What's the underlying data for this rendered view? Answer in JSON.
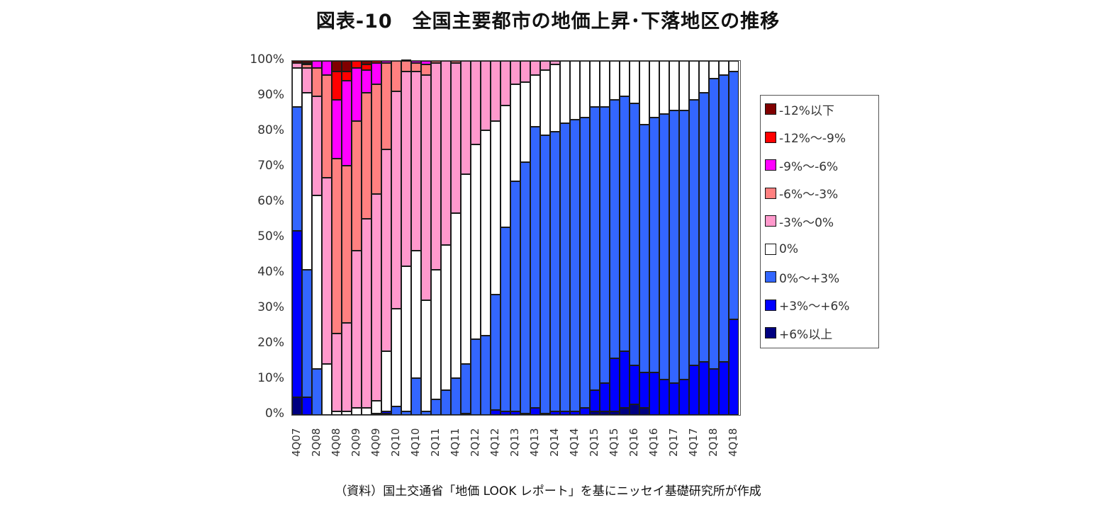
{
  "title": "図表-10　全国主要都市の地価上昇･下落地区の推移",
  "source": "（資料）国土交通省「地価 LOOK レポート」を基にニッセイ基礎研究所が作成",
  "chart_data": {
    "type": "bar",
    "stacked": true,
    "title": "図表-10　全国主要都市の地価上昇･下落地区の推移",
    "xlabel": "",
    "ylabel": "",
    "ylim": [
      0,
      100
    ],
    "yticks": [
      "0%",
      "10%",
      "20%",
      "30%",
      "40%",
      "50%",
      "60%",
      "70%",
      "80%",
      "90%",
      "100%"
    ],
    "x_tick_labels_shown": [
      "4Q07",
      "2Q08",
      "4Q08",
      "2Q09",
      "4Q09",
      "2Q10",
      "4Q10",
      "2Q11",
      "4Q11",
      "2Q12",
      "4Q12",
      "2Q13",
      "4Q13",
      "2Q14",
      "4Q14",
      "2Q15",
      "4Q15",
      "2Q16",
      "4Q16",
      "2Q17",
      "4Q17",
      "2Q18",
      "4Q18"
    ],
    "categories": [
      "4Q07",
      "1Q08",
      "2Q08",
      "3Q08",
      "4Q08",
      "1Q09",
      "2Q09",
      "3Q09",
      "4Q09",
      "1Q10",
      "2Q10",
      "3Q10",
      "4Q10",
      "1Q11",
      "2Q11",
      "3Q11",
      "4Q11",
      "1Q12",
      "2Q12",
      "3Q12",
      "4Q12",
      "1Q13",
      "2Q13",
      "3Q13",
      "4Q13",
      "1Q14",
      "2Q14",
      "3Q14",
      "4Q14",
      "1Q15",
      "2Q15",
      "3Q15",
      "4Q15",
      "1Q16",
      "2Q16",
      "3Q16",
      "4Q16",
      "1Q17",
      "2Q17",
      "3Q17",
      "4Q17",
      "1Q18",
      "2Q18",
      "3Q18",
      "4Q18"
    ],
    "legend_position": "right",
    "grid": false,
    "series": [
      {
        "name": "+6%以上",
        "color": "#000080",
        "values": [
          5,
          0,
          0,
          0,
          0,
          0,
          0,
          0,
          0,
          0.5,
          0,
          0,
          0,
          0,
          0,
          0,
          0,
          0.5,
          0,
          0,
          0,
          0,
          0,
          0,
          0,
          0,
          0,
          0,
          0,
          0,
          1,
          1,
          1,
          2,
          3,
          2,
          0,
          0,
          0,
          0,
          0,
          0,
          0,
          0,
          0
        ]
      },
      {
        "name": "+3%～+6%",
        "color": "#0000FF",
        "values": [
          47,
          5,
          0,
          0,
          0,
          0,
          0,
          0,
          0.5,
          0.5,
          0,
          0,
          0,
          0,
          0,
          0,
          0,
          0,
          0,
          0,
          1.5,
          1,
          1,
          0.5,
          2,
          0.5,
          1,
          1,
          1,
          2,
          6,
          8,
          15,
          16,
          11,
          10,
          12,
          10,
          9,
          10,
          14,
          15,
          13,
          15,
          27
        ]
      },
      {
        "name": "0%～+3%",
        "color": "#3366FF",
        "values": [
          35,
          36,
          13,
          0,
          0,
          0,
          0,
          0,
          0,
          0,
          2.5,
          1,
          10.5,
          1,
          4.5,
          7,
          10.5,
          14,
          21.5,
          22.5,
          32.5,
          52,
          65,
          71,
          79.5,
          78.5,
          79,
          81.5,
          82.5,
          82,
          80,
          78,
          73,
          72,
          74,
          70,
          72,
          75,
          77,
          76,
          75,
          76,
          82,
          81,
          70
        ]
      },
      {
        "name": "0%",
        "color": "#FFFFFF",
        "values": [
          11,
          50,
          49,
          14.5,
          1,
          1,
          2,
          2,
          3.5,
          17,
          27.5,
          41,
          36,
          31.5,
          36.5,
          41,
          46.5,
          53.5,
          55,
          58,
          49,
          34.5,
          27.5,
          22.5,
          14.5,
          18.5,
          19,
          17.5,
          16.5,
          16,
          13,
          13,
          11,
          10,
          12,
          18,
          16,
          15,
          14,
          14,
          11,
          9,
          5,
          4,
          3
        ]
      },
      {
        "name": "-3%～0%",
        "color": "#FF99CC",
        "values": [
          1.5,
          7,
          28,
          52.5,
          22,
          25,
          44.5,
          53.5,
          58.5,
          57,
          61.5,
          55,
          50.5,
          63.5,
          58.5,
          52,
          42.5,
          32,
          23.5,
          19.5,
          17,
          12.5,
          6.5,
          6,
          4,
          2.5,
          1,
          0,
          0,
          0,
          0,
          0,
          0,
          0,
          0,
          0,
          0,
          0,
          0,
          0,
          0,
          0,
          0,
          0,
          0
        ]
      },
      {
        "name": "-6%～-3%",
        "color": "#FF8080",
        "values": [
          0,
          1,
          8,
          29,
          49.5,
          44.5,
          36.5,
          35.5,
          31,
          24.5,
          8.5,
          3,
          2.5,
          3,
          0.5,
          0,
          0.5,
          0,
          0,
          0,
          0,
          0,
          0,
          0,
          0,
          0,
          0,
          0,
          0,
          0,
          0,
          0,
          0,
          0,
          0,
          0,
          0,
          0,
          0,
          0,
          0,
          0,
          0,
          0,
          0
        ]
      },
      {
        "name": "-9%～-6%",
        "color": "#FF00FF",
        "values": [
          0,
          0.5,
          2,
          4,
          16.5,
          24,
          15,
          6.5,
          6,
          0.5,
          0,
          0.5,
          0.5,
          1,
          0,
          0,
          0,
          0,
          0,
          0,
          0,
          0,
          0,
          0,
          0,
          0,
          0,
          0,
          0,
          0,
          0,
          0,
          0,
          0,
          0,
          0,
          0,
          0,
          0,
          0,
          0,
          0,
          0,
          0,
          0
        ]
      },
      {
        "name": "-12%～-9%",
        "color": "#FF0000",
        "values": [
          0,
          0,
          0,
          0,
          8,
          2.5,
          2,
          1.5,
          0.5,
          0,
          0,
          0,
          0,
          0,
          0,
          0,
          0,
          0,
          0,
          0,
          0,
          0,
          0,
          0,
          0,
          0,
          0,
          0,
          0,
          0,
          0,
          0,
          0,
          0,
          0,
          0,
          0,
          0,
          0,
          0,
          0,
          0,
          0,
          0,
          0
        ]
      },
      {
        "name": "-12%以下",
        "color": "#800000",
        "values": [
          0.5,
          0.5,
          0,
          0,
          3,
          3,
          0,
          1,
          0,
          0,
          0,
          0,
          0,
          0,
          0,
          0,
          0,
          0,
          0,
          0,
          0,
          0,
          0,
          0,
          0,
          0,
          0,
          0,
          0,
          0,
          0,
          0,
          0,
          0,
          0,
          0,
          0,
          0,
          0,
          0,
          0,
          0,
          0,
          0,
          0
        ]
      }
    ]
  },
  "legend": {
    "items": [
      {
        "label": "-12%以下",
        "color": "#800000"
      },
      {
        "label": "-12%～-9%",
        "color": "#FF0000"
      },
      {
        "label": "-9%～-6%",
        "color": "#FF00FF"
      },
      {
        "label": "-6%～-3%",
        "color": "#FF8080"
      },
      {
        "label": "-3%～0%",
        "color": "#FF99CC"
      },
      {
        "label": "0%",
        "color": "#FFFFFF"
      },
      {
        "label": "0%～+3%",
        "color": "#3366FF"
      },
      {
        "label": "+3%～+6%",
        "color": "#0000FF"
      },
      {
        "label": "+6%以上",
        "color": "#000080"
      }
    ]
  }
}
